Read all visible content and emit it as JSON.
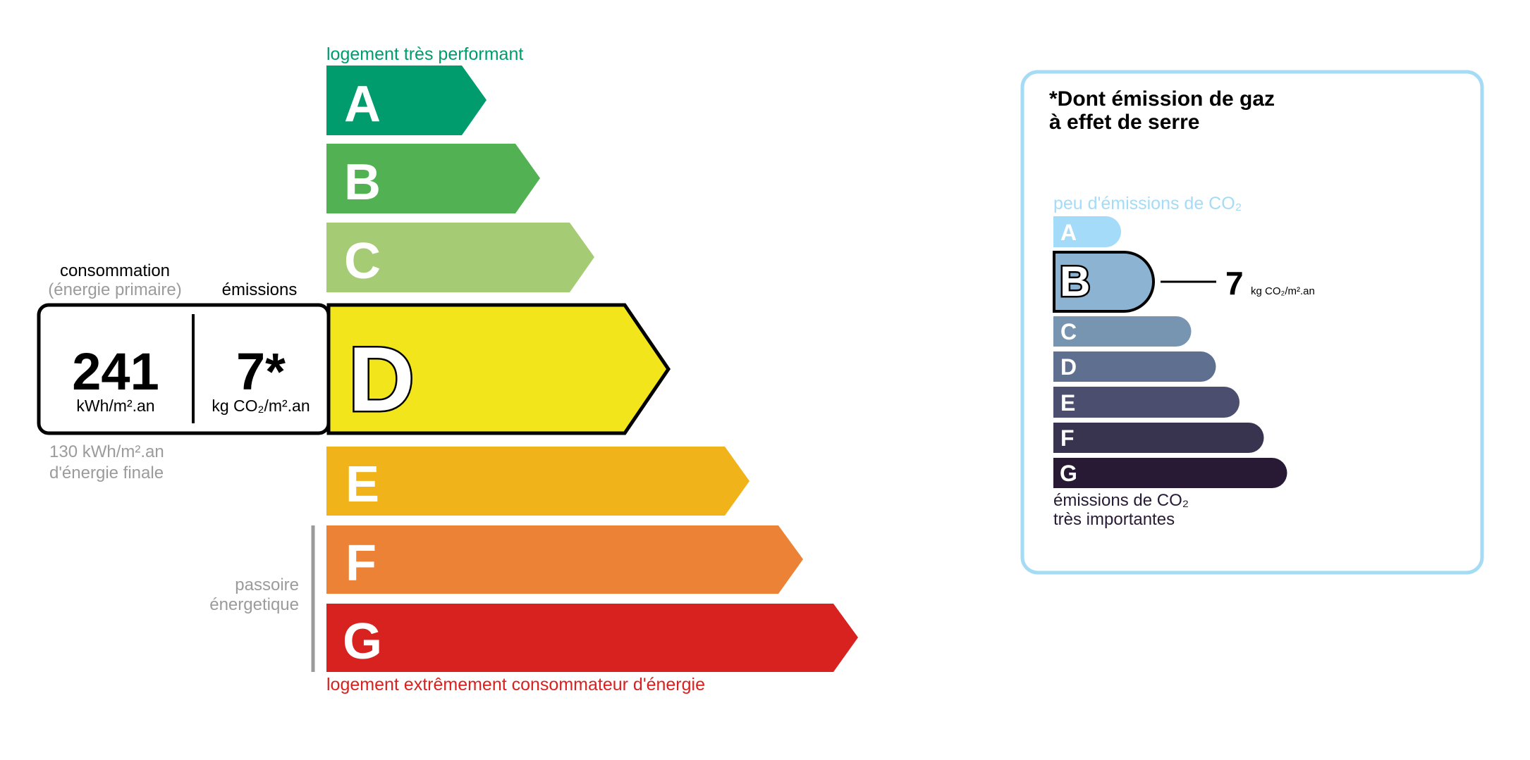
{
  "energy": {
    "top_label": "logement très performant",
    "bottom_label": "logement extrêmement consommateur d'énergie",
    "passoire_line1": "passoire",
    "passoire_line2": "énergetique",
    "classes": [
      {
        "letter": "A",
        "color": "#009c6d"
      },
      {
        "letter": "B",
        "color": "#52b153"
      },
      {
        "letter": "C",
        "color": "#a5cc74"
      },
      {
        "letter": "D",
        "color": "#f2e51b"
      },
      {
        "letter": "E",
        "color": "#f0b41a"
      },
      {
        "letter": "F",
        "color": "#eb8235"
      },
      {
        "letter": "G",
        "color": "#d7221f"
      }
    ],
    "current_class": "D",
    "consumption_header": "consommation",
    "consumption_sub": "(énergie primaire)",
    "emissions_header": "émissions",
    "consumption_value": "241",
    "consumption_unit": "kWh/m².an",
    "emissions_value": "7*",
    "emissions_unit": "kg CO₂/m².an",
    "final_energy_line1": "130 kWh/m².an",
    "final_energy_line2": "d'énergie finale"
  },
  "ges": {
    "title_line1": "*Dont émission de gaz",
    "title_line2": "à effet de serre",
    "top_label": "peu d'émissions de CO₂",
    "bottom_label_line1": "émissions de CO₂",
    "bottom_label_line2": "très importantes",
    "classes": [
      {
        "letter": "A",
        "color": "#a4dbf8"
      },
      {
        "letter": "B",
        "color": "#8cb4d2"
      },
      {
        "letter": "C",
        "color": "#7794b1"
      },
      {
        "letter": "D",
        "color": "#5f6f8f"
      },
      {
        "letter": "E",
        "color": "#4b4e6e"
      },
      {
        "letter": "F",
        "color": "#38334f"
      },
      {
        "letter": "G",
        "color": "#281a34"
      }
    ],
    "current_class": "B",
    "value": "7",
    "unit": "kg CO₂/m².an",
    "border_color": "#a6dbf5"
  }
}
